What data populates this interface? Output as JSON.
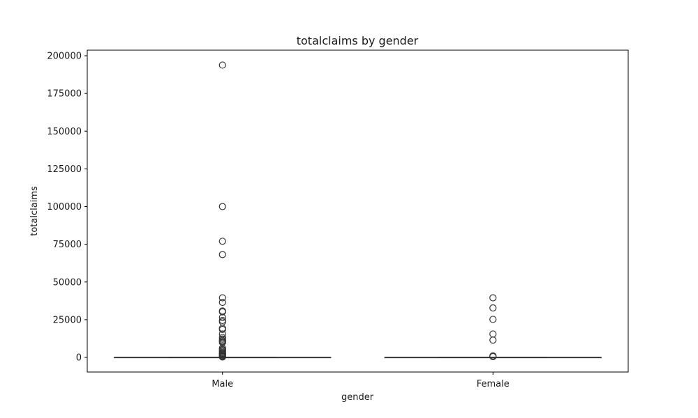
{
  "chart_data": {
    "type": "box",
    "title": "totalclaims by gender",
    "xlabel": "gender",
    "ylabel": "totalclaims",
    "categories": [
      "Male",
      "Female"
    ],
    "ylim": [
      -9700,
      203700
    ],
    "yticks": [
      0,
      25000,
      50000,
      75000,
      100000,
      125000,
      150000,
      175000,
      200000
    ],
    "grid": false,
    "box_color": "#333333",
    "boxes": [
      {
        "category": "Male",
        "whisker_low": 0,
        "q1": 0,
        "median": 0,
        "q3": 0,
        "whisker_high": 0,
        "outliers": [
          193800,
          100000,
          77000,
          68200,
          39500,
          36500,
          30800,
          30200,
          26500,
          24500,
          23500,
          19300,
          18500,
          15500,
          13200,
          12200,
          11200,
          10500,
          9800,
          6200,
          5200,
          4600,
          3900,
          3200,
          2700,
          2200,
          1700,
          1200,
          700,
          300
        ]
      },
      {
        "category": "Female",
        "whisker_low": 0,
        "q1": 0,
        "median": 0,
        "q3": 0,
        "whisker_high": 0,
        "outliers": [
          39500,
          32800,
          25200,
          15500,
          11500,
          1000,
          500
        ]
      }
    ]
  }
}
